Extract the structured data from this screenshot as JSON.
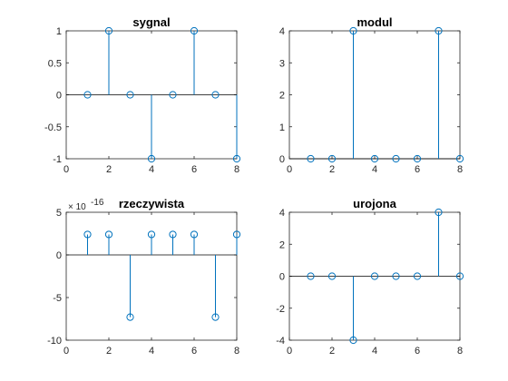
{
  "figure": {
    "background": "#ffffff",
    "stem_color": "#0072BD",
    "axis_color": "#262626",
    "baseline_color": "#000000"
  },
  "chart_data": [
    {
      "type": "stem",
      "title": "sygnal",
      "x": [
        1,
        2,
        3,
        4,
        5,
        6,
        7,
        8
      ],
      "y": [
        0,
        1,
        0,
        -1,
        0,
        1,
        0,
        -1
      ],
      "xlim": [
        0,
        8
      ],
      "ylim": [
        -1,
        1
      ],
      "xticks": [
        0,
        2,
        4,
        6,
        8
      ],
      "yticks": [
        -1,
        -0.5,
        0,
        0.5,
        1
      ],
      "grid": false,
      "legend": "none"
    },
    {
      "type": "stem",
      "title": "modul",
      "x": [
        1,
        2,
        3,
        4,
        5,
        6,
        7,
        8
      ],
      "y": [
        0,
        0,
        4,
        0,
        0,
        0,
        4,
        0
      ],
      "xlim": [
        0,
        8
      ],
      "ylim": [
        0,
        4
      ],
      "xticks": [
        0,
        2,
        4,
        6,
        8
      ],
      "yticks": [
        0,
        1,
        2,
        3,
        4
      ],
      "grid": false,
      "legend": "none"
    },
    {
      "type": "stem",
      "title": "rzeczywista",
      "exponent_label": "× 10",
      "exponent_power": "-16",
      "x": [
        1,
        2,
        3,
        4,
        5,
        6,
        7,
        8
      ],
      "y": [
        2.4,
        2.4,
        -7.3,
        2.4,
        2.4,
        2.4,
        -7.3,
        2.4
      ],
      "xlim": [
        0,
        8
      ],
      "ylim": [
        -10,
        5
      ],
      "xticks": [
        0,
        2,
        4,
        6,
        8
      ],
      "yticks": [
        -10,
        -5,
        0,
        5
      ],
      "grid": false,
      "legend": "none"
    },
    {
      "type": "stem",
      "title": "urojona",
      "x": [
        1,
        2,
        3,
        4,
        5,
        6,
        7,
        8
      ],
      "y": [
        0,
        0,
        -4,
        0,
        0,
        0,
        4,
        0
      ],
      "xlim": [
        0,
        8
      ],
      "ylim": [
        -4,
        4
      ],
      "xticks": [
        0,
        2,
        4,
        6,
        8
      ],
      "yticks": [
        -4,
        -2,
        0,
        2,
        4
      ],
      "grid": false,
      "legend": "none"
    }
  ]
}
